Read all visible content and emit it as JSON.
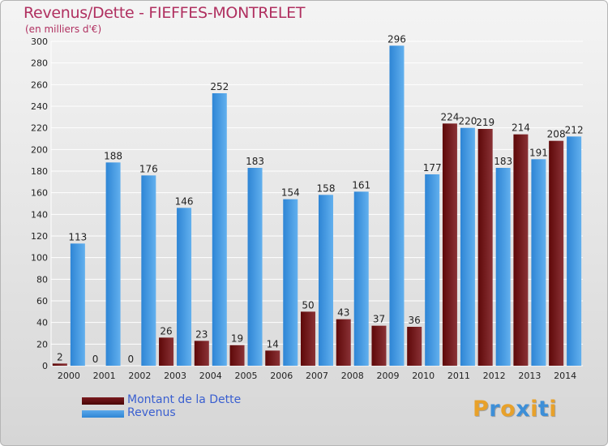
{
  "header": {
    "title": "Revenus/Dette - FIEFFES-MONTRELET",
    "subtitle": "(en milliers d'€)"
  },
  "legend": {
    "items": [
      {
        "label": "Montant de la Dette",
        "color": "#6b0f12"
      },
      {
        "label": "Revenus",
        "color": "#3d8fd8"
      }
    ]
  },
  "brand": {
    "logo_text": "Proxiti",
    "letter_colors": [
      "#e8a12a",
      "#3d8fd8",
      "#e8a12a",
      "#3d8fd8",
      "#e8a12a",
      "#3d8fd8",
      "#e8a12a"
    ]
  },
  "colors": {
    "dette_dark": "#5e0808",
    "dette_light": "#8a3236",
    "revenus_dark": "#2e85d5",
    "revenus_light": "#62b0ee",
    "grid": "#ffffff",
    "axis_text": "#222222"
  },
  "chart_data": {
    "type": "bar",
    "title": "Revenus/Dette - FIEFFES-MONTRELET",
    "subtitle": "(en milliers d'€)",
    "xlabel": "",
    "ylabel": "",
    "ylim": [
      0,
      300
    ],
    "yticks": [
      0,
      20,
      40,
      60,
      80,
      100,
      120,
      140,
      160,
      180,
      200,
      220,
      240,
      260,
      280,
      300
    ],
    "grid": true,
    "legend_position": "bottom-left",
    "categories": [
      "2000",
      "2001",
      "2002",
      "2003",
      "2004",
      "2005",
      "2006",
      "2007",
      "2008",
      "2009",
      "2010",
      "2011",
      "2012",
      "2013",
      "2014"
    ],
    "series": [
      {
        "name": "Montant de la Dette",
        "values": [
          2,
          0,
          0,
          26,
          23,
          19,
          14,
          50,
          43,
          37,
          36,
          224,
          219,
          214,
          208
        ]
      },
      {
        "name": "Revenus",
        "values": [
          113,
          188,
          176,
          146,
          252,
          183,
          154,
          158,
          161,
          296,
          177,
          220,
          183,
          191,
          212
        ]
      }
    ]
  }
}
